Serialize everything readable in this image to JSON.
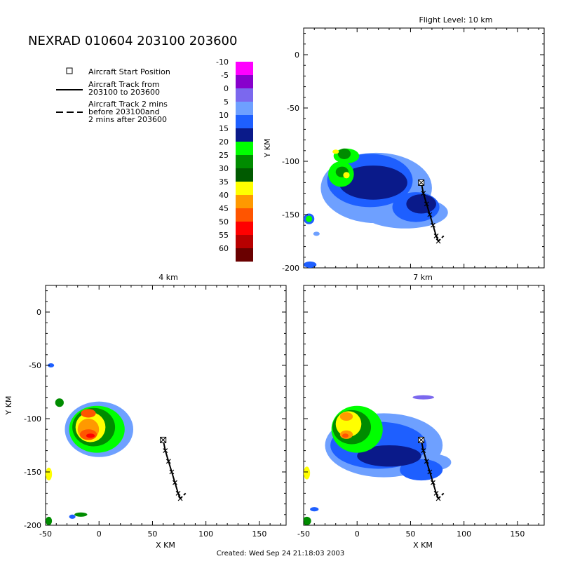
{
  "main_title": "NEXRAD 010604 203100 203600",
  "legend": {
    "start_label": "Aircraft Start Position",
    "track_label_lines": [
      "Aircraft Track from",
      "203100 to 203600"
    ],
    "track_ext_label_lines": [
      "Aircraft Track 2 mins",
      "before 203100and",
      "2 mins after 203600"
    ]
  },
  "colorbar": {
    "levels": [
      "-10",
      "-5",
      "0",
      "5",
      "10",
      "15",
      "20",
      "25",
      "30",
      "35",
      "40",
      "45",
      "50",
      "55",
      "60"
    ],
    "colors": [
      "#ff00ff",
      "#8800cc",
      "#7b68ee",
      "#6ea0ff",
      "#1e5fff",
      "#0a1a8a",
      "#00ff00",
      "#008c00",
      "#005a00",
      "#ffff00",
      "#ff9900",
      "#ff5500",
      "#ff0000",
      "#b80000",
      "#6a0000"
    ]
  },
  "footer": "Created: Wed Sep 24 21:18:03 2003",
  "chart_data": [
    {
      "type": "heatmap",
      "title": "Flight Level: 10 km",
      "xlabel": "",
      "ylabel": "Y KM",
      "xlim": [
        -50,
        175
      ],
      "ylim": [
        -200,
        25
      ],
      "xticks": [],
      "yticks": [
        0,
        -50,
        -100,
        -150,
        -200
      ],
      "track": [
        [
          60,
          -120
        ],
        [
          62,
          -130
        ],
        [
          65,
          -140
        ],
        [
          68,
          -150
        ],
        [
          71,
          -160
        ],
        [
          74,
          -170
        ],
        [
          76,
          -175
        ]
      ],
      "track_ext": [
        [
          76,
          -175
        ],
        [
          79,
          -172
        ],
        [
          81,
          -170
        ]
      ],
      "start": [
        60,
        -120
      ],
      "blobs": [
        {
          "cx": 18,
          "cy": -125,
          "rx": 52,
          "ry": 33,
          "c": 3
        },
        {
          "cx": 45,
          "cy": -148,
          "rx": 40,
          "ry": 15,
          "c": 3
        },
        {
          "cx": 12,
          "cy": -118,
          "rx": 40,
          "ry": 25,
          "c": 4
        },
        {
          "cx": 55,
          "cy": -143,
          "rx": 22,
          "ry": 14,
          "c": 4
        },
        {
          "cx": 15,
          "cy": -120,
          "rx": 32,
          "ry": 16,
          "c": 5
        },
        {
          "cx": 60,
          "cy": -140,
          "rx": 14,
          "ry": 9,
          "c": 5
        },
        {
          "cx": -10,
          "cy": -95,
          "rx": 12,
          "ry": 7,
          "c": 6
        },
        {
          "cx": -15,
          "cy": -112,
          "rx": 12,
          "ry": 12,
          "c": 6
        },
        {
          "cx": -12,
          "cy": -93,
          "rx": 6,
          "ry": 5,
          "c": 7
        },
        {
          "cx": -14,
          "cy": -110,
          "rx": 6,
          "ry": 5,
          "c": 7
        },
        {
          "cx": -20,
          "cy": -91,
          "rx": 3,
          "ry": 2,
          "c": 9
        },
        {
          "cx": -10,
          "cy": -113,
          "rx": 3,
          "ry": 3,
          "c": 9
        },
        {
          "cx": -45,
          "cy": -154,
          "rx": 5,
          "ry": 5,
          "c": 4
        },
        {
          "cx": -45,
          "cy": -154,
          "rx": 3,
          "ry": 3,
          "c": 6
        },
        {
          "cx": -44,
          "cy": -197,
          "rx": 6,
          "ry": 3,
          "c": 4
        },
        {
          "cx": -38,
          "cy": -168,
          "rx": 3,
          "ry": 2,
          "c": 3
        }
      ]
    },
    {
      "type": "heatmap",
      "title": "4 km",
      "xlabel": "X KM",
      "ylabel": "Y KM",
      "xlim": [
        -50,
        175
      ],
      "ylim": [
        -200,
        25
      ],
      "xticks": [
        -50,
        0,
        50,
        100,
        150
      ],
      "yticks": [
        0,
        -50,
        -100,
        -150,
        -200
      ],
      "track": [
        [
          60,
          -120
        ],
        [
          62,
          -130
        ],
        [
          65,
          -140
        ],
        [
          68,
          -150
        ],
        [
          71,
          -160
        ],
        [
          74,
          -170
        ],
        [
          76,
          -175
        ]
      ],
      "track_ext": [
        [
          76,
          -175
        ],
        [
          79,
          -172
        ],
        [
          81,
          -170
        ]
      ],
      "start": [
        60,
        -120
      ],
      "blobs": [
        {
          "cx": 0,
          "cy": -110,
          "rx": 32,
          "ry": 26,
          "c": 3
        },
        {
          "cx": -2,
          "cy": -110,
          "rx": 26,
          "ry": 22,
          "c": 6
        },
        {
          "cx": -5,
          "cy": -108,
          "rx": 20,
          "ry": 18,
          "c": 7
        },
        {
          "cx": -8,
          "cy": -108,
          "rx": 14,
          "ry": 14,
          "c": 9
        },
        {
          "cx": -10,
          "cy": -110,
          "rx": 10,
          "ry": 10,
          "c": 10
        },
        {
          "cx": -10,
          "cy": -95,
          "rx": 7,
          "ry": 4,
          "c": 11
        },
        {
          "cx": -10,
          "cy": -115,
          "rx": 8,
          "ry": 5,
          "c": 11
        },
        {
          "cx": -8,
          "cy": -116,
          "rx": 4,
          "ry": 2,
          "c": 12
        },
        {
          "cx": -37,
          "cy": -85,
          "rx": 4,
          "ry": 4,
          "c": 7
        },
        {
          "cx": -45,
          "cy": -50,
          "rx": 3,
          "ry": 2,
          "c": 4
        },
        {
          "cx": -47,
          "cy": -152,
          "rx": 3,
          "ry": 6,
          "c": 9
        },
        {
          "cx": -47,
          "cy": -196,
          "rx": 3,
          "ry": 4,
          "c": 7
        },
        {
          "cx": -17,
          "cy": -190,
          "rx": 6,
          "ry": 2,
          "c": 7
        },
        {
          "cx": -25,
          "cy": -192,
          "rx": 3,
          "ry": 2,
          "c": 4
        }
      ]
    },
    {
      "type": "heatmap",
      "title": "7 km",
      "xlabel": "X KM",
      "ylabel": "",
      "xlim": [
        -50,
        175
      ],
      "ylim": [
        -200,
        25
      ],
      "xticks": [
        -50,
        0,
        50,
        100,
        150
      ],
      "yticks": [],
      "track": [
        [
          60,
          -120
        ],
        [
          62,
          -130
        ],
        [
          65,
          -140
        ],
        [
          68,
          -150
        ],
        [
          71,
          -160
        ],
        [
          74,
          -170
        ],
        [
          76,
          -175
        ]
      ],
      "track_ext": [
        [
          76,
          -175
        ],
        [
          79,
          -172
        ],
        [
          81,
          -170
        ]
      ],
      "start": [
        60,
        -120
      ],
      "blobs": [
        {
          "cx": 25,
          "cy": -125,
          "rx": 55,
          "ry": 30,
          "c": 3
        },
        {
          "cx": 70,
          "cy": -141,
          "rx": 18,
          "ry": 8,
          "c": 3
        },
        {
          "cx": 60,
          "cy": -148,
          "rx": 20,
          "ry": 10,
          "c": 4
        },
        {
          "cx": 20,
          "cy": -125,
          "rx": 45,
          "ry": 22,
          "c": 4
        },
        {
          "cx": 30,
          "cy": -135,
          "rx": 30,
          "ry": 10,
          "c": 5
        },
        {
          "cx": 0,
          "cy": -110,
          "rx": 24,
          "ry": 22,
          "c": 6
        },
        {
          "cx": -5,
          "cy": -108,
          "rx": 18,
          "ry": 16,
          "c": 7
        },
        {
          "cx": -8,
          "cy": -105,
          "rx": 12,
          "ry": 12,
          "c": 9
        },
        {
          "cx": -10,
          "cy": -98,
          "rx": 6,
          "ry": 4,
          "c": 10
        },
        {
          "cx": -10,
          "cy": -115,
          "rx": 6,
          "ry": 4,
          "c": 10
        },
        {
          "cx": -11,
          "cy": -116,
          "rx": 3,
          "ry": 2,
          "c": 11
        },
        {
          "cx": 62,
          "cy": -80,
          "rx": 10,
          "ry": 2,
          "c": 2
        },
        {
          "cx": -47,
          "cy": -151,
          "rx": 3,
          "ry": 6,
          "c": 9
        },
        {
          "cx": -47,
          "cy": -196,
          "rx": 4,
          "ry": 4,
          "c": 7
        },
        {
          "cx": -40,
          "cy": -185,
          "rx": 4,
          "ry": 2,
          "c": 4
        }
      ]
    }
  ]
}
